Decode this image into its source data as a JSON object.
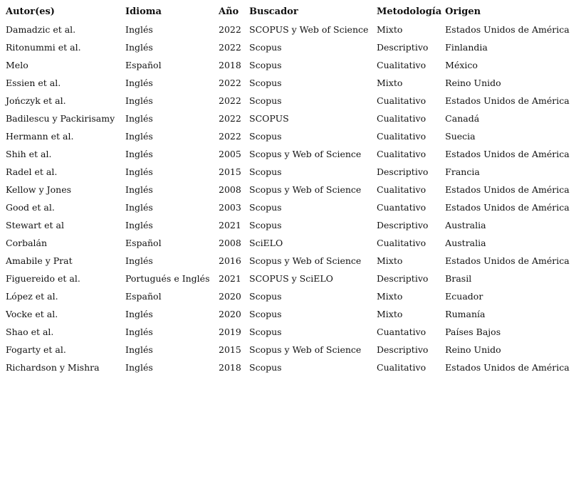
{
  "table": {
    "headers": [
      "Autor(es)",
      "Idioma",
      "Año",
      "Buscador",
      "Metodología",
      "Origen"
    ],
    "rows": [
      [
        "Damadzic et al.",
        "Inglés",
        "2022",
        "SCOPUS y Web of Science",
        "Mixto",
        "Estados Unidos de América"
      ],
      [
        "Ritonummi et al.",
        "Inglés",
        "2022",
        "Scopus",
        "Descriptivo",
        "Finlandia"
      ],
      [
        "Melo",
        "Español",
        "2018",
        "Scopus",
        "Cualitativo",
        "México"
      ],
      [
        "Essien et al.",
        "Inglés",
        "2022",
        "Scopus",
        "Mixto",
        "Reino Unido"
      ],
      [
        "Jończyk et al.",
        "Inglés",
        "2022",
        "Scopus",
        "Cualitativo",
        "Estados Unidos de América"
      ],
      [
        "Badilescu y Packirisamy",
        "Inglés",
        "2022",
        "SCOPUS",
        "Cualitativo",
        "Canadá"
      ],
      [
        "Hermann et al.",
        "Inglés",
        "2022",
        "Scopus",
        "Cualitativo",
        "Suecia"
      ],
      [
        "Shih et al.",
        "Inglés",
        "2005",
        "Scopus y Web of Science",
        "Cualitativo",
        "Estados Unidos de América"
      ],
      [
        "Radel et al.",
        "Inglés",
        "2015",
        "Scopus",
        "Descriptivo",
        "Francia"
      ],
      [
        "Kellow y Jones",
        "Inglés",
        "2008",
        "Scopus y Web of Science",
        "Cualitativo",
        "Estados Unidos de América"
      ],
      [
        "Good et al.",
        "Inglés",
        "2003",
        "Scopus",
        "Cuantativo",
        "Estados Unidos de América"
      ],
      [
        "Stewart et al",
        "Inglés",
        "2021",
        "Scopus",
        "Descriptivo",
        "Australia"
      ],
      [
        "Corbalán",
        "Español",
        "2008",
        "SciELO",
        "Cualitativo",
        "Australia"
      ],
      [
        "Amabile y Prat",
        "Inglés",
        "2016",
        "Scopus y Web of Science",
        "Mixto",
        "Estados Unidos de América"
      ],
      [
        "Figuereido et al.",
        "Portugués e Inglés",
        "2021",
        "SCOPUS y SciELO",
        "Descriptivo",
        "Brasil"
      ],
      [
        "López et al.",
        "Español",
        "2020",
        "Scopus",
        "Mixto",
        "Ecuador"
      ],
      [
        "Vocke et al.",
        "Inglés",
        "2020",
        "Scopus",
        "Mixto",
        "Rumanía"
      ],
      [
        "Shao et al.",
        "Inglés",
        "2019",
        "Scopus",
        "Cuantativo",
        "Países Bajos"
      ],
      [
        "Fogarty et al.",
        "Inglés",
        "2015",
        "Scopus y Web of Science",
        "Descriptivo",
        "Reino Unido"
      ],
      [
        "Richardson y Mishra",
        "Inglés",
        "2018",
        "Scopus",
        "Cualitativo",
        "Estados Unidos de América"
      ]
    ]
  }
}
